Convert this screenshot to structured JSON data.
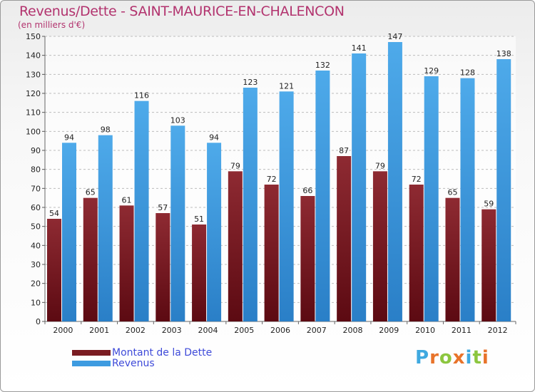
{
  "page": {
    "title": "Revenus/Dette - SAINT-MAURICE-EN-CHALENCON",
    "subtitle": "(en milliers d'€)"
  },
  "legend": {
    "items": [
      {
        "label": "Montant de la Dette",
        "color": "#7a1c22"
      },
      {
        "label": "Revenus",
        "color": "#3d9be0"
      }
    ]
  },
  "logo": {
    "text": "Proxiti",
    "letter_colors": [
      "#3fa9e0",
      "#e8732a",
      "#8cc63f",
      "#e8732a",
      "#3fa9e0",
      "#8cc63f",
      "#e8732a"
    ]
  },
  "colors": {
    "title": "#b2336e",
    "axis_text": "#222222",
    "grid": "#bdbdbd",
    "debt_dark": "#5c0a12",
    "debt_light": "#8e2a32",
    "revenue_dark": "#2a7fc7",
    "revenue_light": "#4eaaea"
  },
  "chart_data": {
    "type": "bar",
    "title": "Revenus/Dette - SAINT-MAURICE-EN-CHALENCON",
    "ylabel": "(en milliers d'€)",
    "xlabel": "",
    "ylim": [
      0,
      150
    ],
    "ytick_step": 10,
    "grid": true,
    "legend_position": "bottom-left",
    "categories": [
      "2000",
      "2001",
      "2002",
      "2003",
      "2004",
      "2005",
      "2006",
      "2007",
      "2008",
      "2009",
      "2010",
      "2011",
      "2012"
    ],
    "series": [
      {
        "name": "Montant de la Dette",
        "values": [
          54,
          65,
          61,
          57,
          51,
          79,
          72,
          66,
          87,
          79,
          72,
          65,
          59
        ]
      },
      {
        "name": "Revenus",
        "values": [
          94,
          98,
          116,
          103,
          94,
          123,
          121,
          132,
          141,
          147,
          129,
          128,
          138
        ]
      }
    ]
  }
}
